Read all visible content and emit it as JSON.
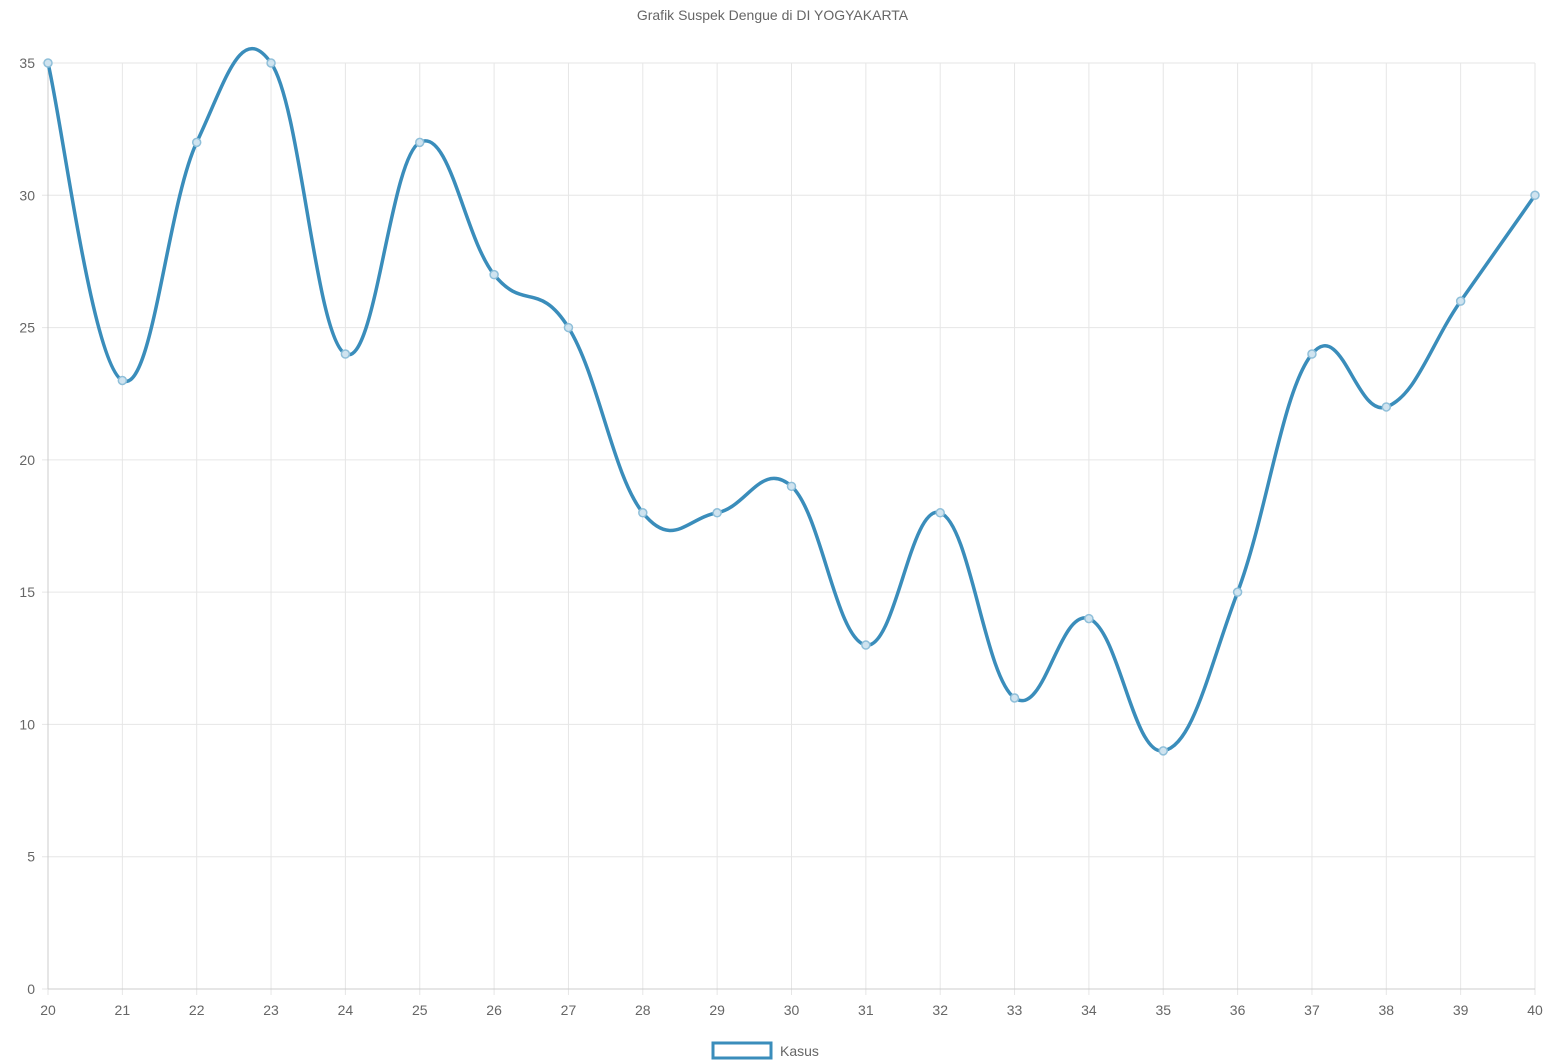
{
  "chart_data": {
    "type": "line",
    "title": "Grafik Suspek Dengue di DI YOGYAKARTA",
    "x": [
      20,
      21,
      22,
      23,
      24,
      25,
      26,
      27,
      28,
      29,
      30,
      31,
      32,
      33,
      34,
      35,
      36,
      37,
      38,
      39,
      40
    ],
    "series": [
      {
        "name": "Kasus",
        "values": [
          35,
          23,
          32,
          35,
          24,
          32,
          27,
          25,
          18,
          18,
          19,
          13,
          18,
          11,
          14,
          9,
          15,
          24,
          22,
          26,
          30
        ],
        "color": "#3a8dbb"
      }
    ],
    "xlim": [
      20,
      40
    ],
    "ylim": [
      0,
      35
    ],
    "yticks": [
      0,
      5,
      10,
      15,
      20,
      25,
      30,
      35
    ],
    "xlabel": "",
    "ylabel": "",
    "grid": true,
    "smooth": true,
    "legend": "bottom-center"
  }
}
